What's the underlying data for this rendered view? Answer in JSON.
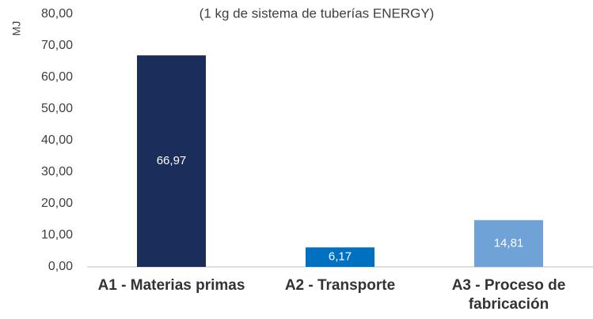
{
  "chart_data": {
    "type": "bar",
    "subtitle": "(1 kg de sistema de tuberías ENERGY)",
    "y_label": "MJ",
    "categories": [
      "A1 - Materias primas",
      "A2 - Transporte",
      "A3 - Proceso de fabricación"
    ],
    "values": [
      66.97,
      6.17,
      14.81
    ],
    "value_labels": [
      "66,97",
      "6,17",
      "14,81"
    ],
    "colors": [
      "#1b2d5a",
      "#0070c0",
      "#6fa3d8"
    ],
    "ylim": [
      0,
      80
    ],
    "yticks": [
      {
        "value": 0,
        "label": "0,00"
      },
      {
        "value": 10,
        "label": "10,00"
      },
      {
        "value": 20,
        "label": "20,00"
      },
      {
        "value": 30,
        "label": "30,00"
      },
      {
        "value": 40,
        "label": "40,00"
      },
      {
        "value": 50,
        "label": "50,00"
      },
      {
        "value": 60,
        "label": "60,00"
      },
      {
        "value": 70,
        "label": "70,00"
      },
      {
        "value": 80,
        "label": "80,00"
      }
    ],
    "grid": false
  }
}
